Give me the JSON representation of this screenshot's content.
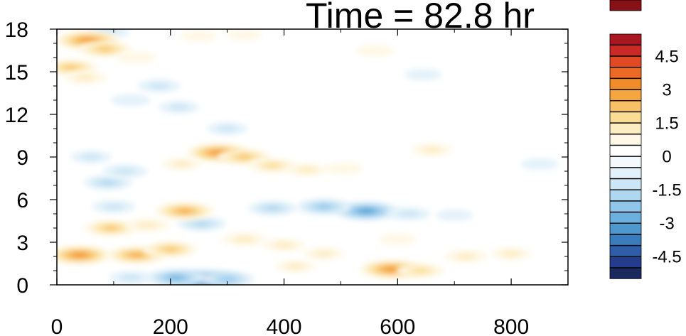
{
  "chart_data": {
    "type": "heatmap",
    "title": "Time = 82.8 hr",
    "xlabel": "",
    "ylabel": "",
    "xlim": [
      0,
      900
    ],
    "ylim": [
      0,
      18
    ],
    "x_ticks": [
      "0",
      "200",
      "400",
      "600",
      "800"
    ],
    "y_ticks": [
      "0",
      "3",
      "6",
      "9",
      "12",
      "15",
      "18"
    ],
    "colorbar": {
      "levels": [
        -5.5,
        -5,
        -4.5,
        -4,
        -3.5,
        -3,
        -2.5,
        -2,
        -1.5,
        -1,
        -0.5,
        0,
        0.5,
        1,
        1.5,
        2,
        2.5,
        3,
        3.5,
        4,
        4.5,
        5,
        5.5
      ],
      "tick_labels": [
        "4.5",
        "3",
        "1.5",
        "0",
        "-1.5",
        "-3",
        "-4.5"
      ],
      "tick_values": [
        4.5,
        3,
        1.5,
        0,
        -1.5,
        -3,
        -4.5
      ],
      "colors": [
        "#1b2a5e",
        "#233d8c",
        "#2f5da8",
        "#3b7cbf",
        "#4f98cf",
        "#6cb0de",
        "#8fc6ea",
        "#b0d7f0",
        "#cce6f5",
        "#e3f1fa",
        "#f3f9fd",
        "#ffffff",
        "#fff8e6",
        "#fdedc2",
        "#fbdc94",
        "#f8c066",
        "#f5a640",
        "#f18c2a",
        "#ec6a25",
        "#e04a25",
        "#ca2a25",
        "#a8161f",
        "#861217"
      ]
    },
    "features": [
      {
        "x": 260,
        "y": 0.3,
        "value": -4.0
      },
      {
        "x": 210,
        "y": 0.5,
        "value": -2.5
      },
      {
        "x": 300,
        "y": 0.4,
        "value": -2.0
      },
      {
        "x": 130,
        "y": 0.5,
        "value": -1.0
      },
      {
        "x": 545,
        "y": 5.2,
        "value": -3.0
      },
      {
        "x": 470,
        "y": 5.5,
        "value": -2.0
      },
      {
        "x": 380,
        "y": 5.4,
        "value": -1.5
      },
      {
        "x": 620,
        "y": 5.0,
        "value": -1.0
      },
      {
        "x": 700,
        "y": 4.9,
        "value": -0.5
      },
      {
        "x": 90,
        "y": 7.2,
        "value": -1.5
      },
      {
        "x": 120,
        "y": 8.0,
        "value": -1.2
      },
      {
        "x": 60,
        "y": 9.0,
        "value": -0.8
      },
      {
        "x": 100,
        "y": 5.5,
        "value": -1.0
      },
      {
        "x": 255,
        "y": 4.3,
        "value": -1.5
      },
      {
        "x": 180,
        "y": 14.0,
        "value": -1.0
      },
      {
        "x": 215,
        "y": 12.5,
        "value": -0.8
      },
      {
        "x": 130,
        "y": 13.0,
        "value": -0.7
      },
      {
        "x": 90,
        "y": 17.8,
        "value": -1.0
      },
      {
        "x": 645,
        "y": 14.8,
        "value": -0.5
      },
      {
        "x": 850,
        "y": 8.5,
        "value": -0.5
      },
      {
        "x": 300,
        "y": 11.0,
        "value": -0.8
      },
      {
        "x": 55,
        "y": 17.2,
        "value": 3.0
      },
      {
        "x": 85,
        "y": 16.6,
        "value": 2.0
      },
      {
        "x": 25,
        "y": 15.3,
        "value": 2.0
      },
      {
        "x": 50,
        "y": 14.6,
        "value": 1.0
      },
      {
        "x": 140,
        "y": 16.0,
        "value": 0.7
      },
      {
        "x": 40,
        "y": 2.1,
        "value": 3.0
      },
      {
        "x": 140,
        "y": 2.1,
        "value": 2.5
      },
      {
        "x": 200,
        "y": 2.5,
        "value": 2.0
      },
      {
        "x": 95,
        "y": 4.0,
        "value": 2.0
      },
      {
        "x": 225,
        "y": 5.2,
        "value": 2.5
      },
      {
        "x": 160,
        "y": 4.2,
        "value": 1.2
      },
      {
        "x": 285,
        "y": 9.3,
        "value": 3.0
      },
      {
        "x": 330,
        "y": 9.0,
        "value": 2.0
      },
      {
        "x": 380,
        "y": 8.4,
        "value": 1.5
      },
      {
        "x": 440,
        "y": 8.1,
        "value": 1.0
      },
      {
        "x": 220,
        "y": 8.5,
        "value": 0.8
      },
      {
        "x": 505,
        "y": 8.2,
        "value": 0.6
      },
      {
        "x": 330,
        "y": 3.2,
        "value": 1.2
      },
      {
        "x": 400,
        "y": 2.8,
        "value": 1.0
      },
      {
        "x": 470,
        "y": 2.2,
        "value": 0.8
      },
      {
        "x": 420,
        "y": 1.3,
        "value": 0.8
      },
      {
        "x": 590,
        "y": 1.1,
        "value": 3.0
      },
      {
        "x": 640,
        "y": 1.0,
        "value": 1.5
      },
      {
        "x": 720,
        "y": 2.0,
        "value": 1.0
      },
      {
        "x": 800,
        "y": 2.2,
        "value": 0.8
      },
      {
        "x": 600,
        "y": 3.2,
        "value": 0.5
      },
      {
        "x": 660,
        "y": 9.5,
        "value": 0.8
      },
      {
        "x": 560,
        "y": 16.5,
        "value": 0.6
      },
      {
        "x": 250,
        "y": 17.5,
        "value": 0.5
      },
      {
        "x": 330,
        "y": 17.6,
        "value": 0.4
      }
    ]
  }
}
